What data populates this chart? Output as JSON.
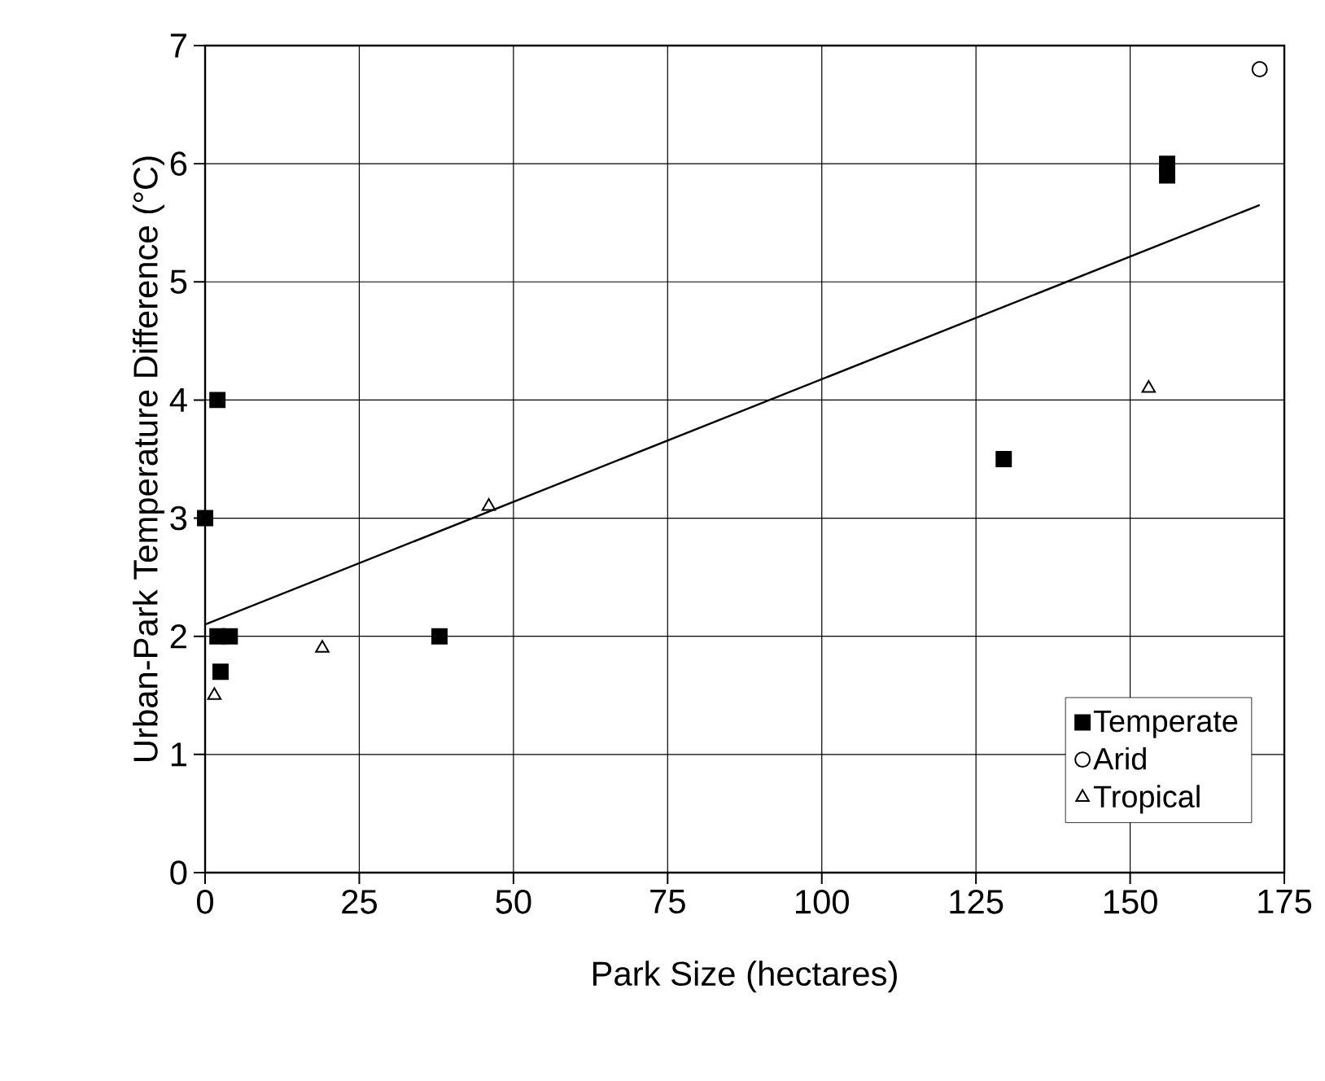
{
  "chart_data": {
    "type": "scatter",
    "xlabel": "Park Size (hectares)",
    "ylabel": "Urban-Park Temperature Difference (°C)",
    "xlim": [
      0,
      175
    ],
    "xticks": [
      0,
      25,
      50,
      75,
      100,
      125,
      150,
      175
    ],
    "ylim": [
      0,
      7
    ],
    "yticks": [
      0,
      1,
      2,
      3,
      4,
      5,
      6,
      7
    ],
    "grid": true,
    "legend": "bottom right",
    "series": [
      {
        "name": "Temperate",
        "color": "#000000",
        "marker": "square",
        "x": [
          0,
          2,
          2,
          4,
          2.5,
          38,
          129.5,
          156,
          156
        ],
        "values": [
          3.0,
          4.0,
          2.0,
          2.0,
          1.7,
          2.0,
          3.5,
          6.0,
          5.9
        ]
      },
      {
        "name": "Arid",
        "color": "#000000",
        "marker": "circle",
        "x": [
          171
        ],
        "values": [
          6.8
        ]
      },
      {
        "name": "Tropical",
        "color": "#000000",
        "marker": "triangle",
        "x": [
          1.5,
          19,
          46,
          153
        ],
        "values": [
          1.5,
          1.9,
          3.1,
          4.1
        ]
      },
      {
        "type": "line",
        "color": "#000000",
        "marker": "none",
        "x": [
          0,
          171
        ],
        "values": [
          2.1,
          5.65
        ]
      }
    ]
  }
}
